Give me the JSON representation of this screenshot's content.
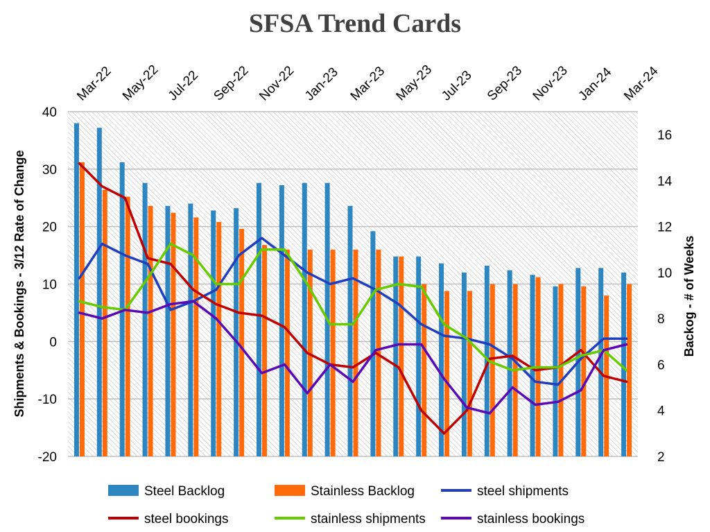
{
  "chart_data": {
    "type": "bar",
    "title": "SFSA Trend Cards",
    "x_tick_labels": [
      "Mar-22",
      "May-22",
      "Jul-22",
      "Sep-22",
      "Nov-22",
      "Jan-23",
      "Mar-23",
      "May-23",
      "Jul-23",
      "Sep-23",
      "Nov-23",
      "Jan-24",
      "Mar-24"
    ],
    "categories": [
      "Mar-22",
      "Apr-22",
      "May-22",
      "Jun-22",
      "Jul-22",
      "Aug-22",
      "Sep-22",
      "Oct-22",
      "Nov-22",
      "Dec-22",
      "Jan-23",
      "Feb-23",
      "Mar-23",
      "Apr-23",
      "May-23",
      "Jun-23",
      "Jul-23",
      "Aug-23",
      "Sep-23",
      "Oct-23",
      "Nov-23",
      "Dec-23",
      "Jan-24",
      "Feb-24",
      "Mar-24"
    ],
    "y_left": {
      "label": "Shipments & Bookings - 3/12  Rate of Change",
      "range": [
        -20,
        40
      ],
      "ticks": [
        -20,
        -10,
        0,
        10,
        20,
        30,
        40
      ]
    },
    "y_right": {
      "label": "Backog - # of Weeks",
      "range": [
        2,
        17
      ],
      "ticks": [
        2,
        4,
        6,
        8,
        10,
        12,
        14,
        16
      ]
    },
    "bar_series": [
      {
        "name": "Steel Backlog",
        "axis": "right",
        "color": "#2e86c1",
        "values": [
          16.5,
          16.3,
          14.8,
          13.9,
          12.9,
          13.0,
          12.7,
          12.8,
          13.9,
          13.8,
          13.9,
          13.9,
          12.9,
          11.8,
          10.7,
          10.7,
          10.4,
          10.0,
          10.3,
          10.1,
          9.9,
          9.4,
          10.2,
          10.2,
          10.0
        ]
      },
      {
        "name": "Stainless Backlog",
        "axis": "right",
        "color": "#ff6a0a",
        "values": [
          14.8,
          13.6,
          13.3,
          12.9,
          12.6,
          12.4,
          12.2,
          11.9,
          11.2,
          11.0,
          11.0,
          11.0,
          11.0,
          11.0,
          10.7,
          9.5,
          9.2,
          9.2,
          9.5,
          9.5,
          9.8,
          9.5,
          9.4,
          9.0,
          9.5
        ]
      }
    ],
    "line_series": [
      {
        "name": "steel shipments",
        "axis": "left",
        "color": "#1f3fbf",
        "values": [
          11,
          17,
          15,
          13.5,
          5.5,
          7,
          9,
          15,
          18,
          15,
          12,
          10,
          11,
          9,
          6.5,
          3,
          1,
          0.5,
          -0.5,
          -3,
          -7,
          -7.5,
          -3,
          0.5,
          0.5
        ]
      },
      {
        "name": "steel bookings",
        "axis": "left",
        "color": "#c00000",
        "values": [
          31,
          27,
          25,
          14.5,
          13.5,
          9,
          6.5,
          5,
          4.5,
          2.5,
          -2,
          -4,
          -4.5,
          -2,
          -4.5,
          -12,
          -16,
          -12,
          -3,
          -2.5,
          -5,
          -4.5,
          -1.5,
          -6,
          -7
        ]
      },
      {
        "name": "stainless shipments",
        "axis": "left",
        "color": "#66cc00",
        "values": [
          7,
          6,
          5.5,
          11,
          17,
          15,
          10,
          10,
          16,
          16,
          10,
          3,
          3,
          9,
          10,
          9.5,
          3,
          0.5,
          -3.5,
          -5,
          -4.5,
          -4.5,
          -2.5,
          -1.5,
          -5
        ]
      },
      {
        "name": "stainless bookings",
        "axis": "left",
        "color": "#5a0ab4",
        "values": [
          5,
          4,
          5.5,
          5,
          6.5,
          7,
          4,
          -0.5,
          -5.5,
          -4,
          -9,
          -4,
          -7,
          -1.5,
          -0.5,
          -0.5,
          -6.5,
          -11.5,
          -12.5,
          -8,
          -11,
          -10.5,
          -8.5,
          -1.5,
          -0.5
        ]
      }
    ],
    "legend": {
      "placement": "bottom",
      "items": [
        {
          "name": "Steel Backlog",
          "kind": "bar",
          "color": "#2e86c1"
        },
        {
          "name": "Stainless Backlog",
          "kind": "bar",
          "color": "#ff6a0a"
        },
        {
          "name": "steel shipments",
          "kind": "line",
          "color": "#1f3fbf"
        },
        {
          "name": "steel bookings",
          "kind": "line",
          "color": "#c00000"
        },
        {
          "name": "stainless shipments",
          "kind": "line",
          "color": "#66cc00"
        },
        {
          "name": "stainless bookings",
          "kind": "line",
          "color": "#5a0ab4"
        }
      ]
    },
    "grid": true,
    "background_pattern": "diagonal-hatch"
  }
}
